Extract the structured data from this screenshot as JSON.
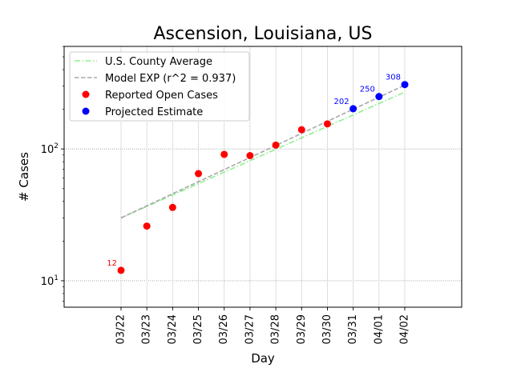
{
  "chart_data": {
    "type": "scatter",
    "title": "Ascension, Louisiana, US",
    "xlabel": "Day",
    "ylabel": "# Cases",
    "yscale": "log",
    "ylim": [
      6.3,
      600
    ],
    "y_ticks": [
      {
        "value": 10,
        "base": "10",
        "exp": "1"
      },
      {
        "value": 100,
        "base": "10",
        "exp": "2"
      }
    ],
    "grid": true,
    "legend_position": "top-left",
    "categories": [
      "03/22",
      "03/23",
      "03/24",
      "03/25",
      "03/26",
      "03/27",
      "03/28",
      "03/29",
      "03/30",
      "03/31",
      "04/01",
      "04/02"
    ],
    "series": [
      {
        "name": "U.S. County Average",
        "kind": "line",
        "style": "dashdot",
        "color": "#90ee90",
        "x": [
          "03/22",
          "04/02"
        ],
        "values": [
          30,
          270
        ]
      },
      {
        "name": "Model EXP (r^2 = 0.937)",
        "kind": "line",
        "style": "dashed",
        "color": "#a9a9a9",
        "x": [
          "03/22",
          "04/02"
        ],
        "values": [
          30,
          305
        ]
      },
      {
        "name": "Reported Open Cases",
        "kind": "scatter",
        "color": "#ff0000",
        "x": [
          "03/22",
          "03/23",
          "03/24",
          "03/25",
          "03/26",
          "03/27",
          "03/28",
          "03/29",
          "03/30"
        ],
        "values": [
          12,
          26,
          36,
          65,
          91,
          89,
          107,
          140,
          155
        ]
      },
      {
        "name": "Projected Estimate",
        "kind": "scatter",
        "color": "#0000ff",
        "x": [
          "03/31",
          "04/01",
          "04/02"
        ],
        "values": [
          202,
          250,
          308
        ]
      }
    ],
    "annotations": [
      {
        "x": "03/22",
        "value": 12,
        "text": "12",
        "color": "#ff0000"
      },
      {
        "x": "03/31",
        "value": 202,
        "text": "202",
        "color": "#0000ff"
      },
      {
        "x": "04/01",
        "value": 250,
        "text": "250",
        "color": "#0000ff"
      },
      {
        "x": "04/02",
        "value": 308,
        "text": "308",
        "color": "#0000ff"
      }
    ]
  }
}
